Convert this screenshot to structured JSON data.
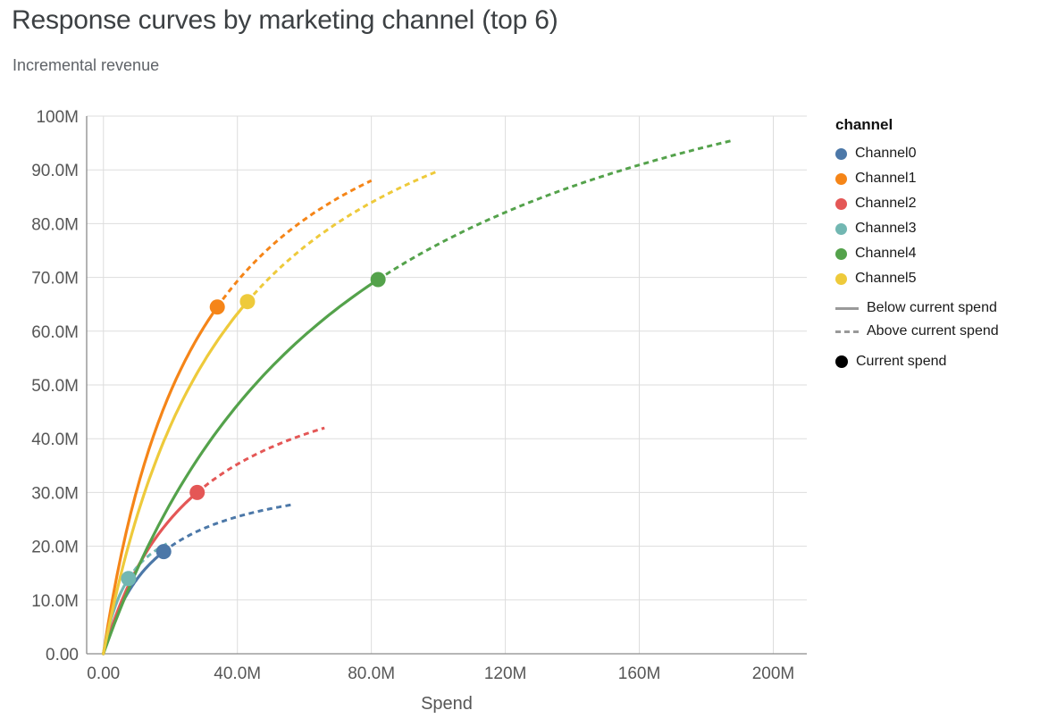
{
  "chart_data": {
    "type": "line",
    "title": "Response curves by marketing channel (top 6)",
    "subtitle": "Incremental revenue",
    "xlabel": "Spend",
    "ylabel": "Incremental revenue",
    "xlim": [
      -5000000,
      210000000
    ],
    "ylim": [
      0,
      100000000
    ],
    "grid": true,
    "legend_position": "right",
    "legend_title": "channel",
    "x_ticks": [
      {
        "value": 0,
        "label": "0.00"
      },
      {
        "value": 40000000,
        "label": "40.0M"
      },
      {
        "value": 80000000,
        "label": "80.0M"
      },
      {
        "value": 120000000,
        "label": "120M"
      },
      {
        "value": 160000000,
        "label": "160M"
      },
      {
        "value": 200000000,
        "label": "200M"
      }
    ],
    "y_ticks": [
      {
        "value": 0,
        "label": "0.00"
      },
      {
        "value": 10000000,
        "label": "10.0M"
      },
      {
        "value": 20000000,
        "label": "20.0M"
      },
      {
        "value": 30000000,
        "label": "30.0M"
      },
      {
        "value": 40000000,
        "label": "40.0M"
      },
      {
        "value": 50000000,
        "label": "50.0M"
      },
      {
        "value": 60000000,
        "label": "60.0M"
      },
      {
        "value": 70000000,
        "label": "70.0M"
      },
      {
        "value": 80000000,
        "label": "80.0M"
      },
      {
        "value": 90000000,
        "label": "90.0M"
      },
      {
        "value": 100000000,
        "label": "100M"
      }
    ],
    "series": [
      {
        "name": "Channel0",
        "color": "#4c78a8",
        "current_spend": 18000000,
        "current_revenue": 19000000,
        "end_spend": 57000000,
        "end_revenue": 27800000
      },
      {
        "name": "Channel1",
        "color": "#f58518",
        "current_spend": 34000000,
        "current_revenue": 64500000,
        "end_spend": 80000000,
        "end_revenue": 88000000
      },
      {
        "name": "Channel2",
        "color": "#e45756",
        "current_spend": 28000000,
        "current_revenue": 30000000,
        "end_spend": 66000000,
        "end_revenue": 42000000
      },
      {
        "name": "Channel3",
        "color": "#72b7b2",
        "current_spend": 7500000,
        "current_revenue": 14000000,
        "end_spend": 20000000,
        "end_revenue": 20800000
      },
      {
        "name": "Channel4",
        "color": "#54a24b",
        "current_spend": 82000000,
        "current_revenue": 69600000,
        "end_spend": 188000000,
        "end_revenue": 95500000
      },
      {
        "name": "Channel5",
        "color": "#eeca3b",
        "current_spend": 43000000,
        "current_revenue": 65500000,
        "end_spend": 100000000,
        "end_revenue": 89800000
      }
    ],
    "line_styles": [
      {
        "style": "solid",
        "label": "Below current spend"
      },
      {
        "style": "dashed",
        "label": "Above current spend"
      }
    ],
    "marker_legend": {
      "label": "Current spend",
      "color": "#000000"
    },
    "colors": {
      "grid": "#dddddd",
      "axis": "#8a8a8a",
      "tick_label": "#565656",
      "title": "#3c4043",
      "subtitle": "#5f6368",
      "legend_text": "#1a1a1a",
      "legend_line": "#999999"
    }
  }
}
